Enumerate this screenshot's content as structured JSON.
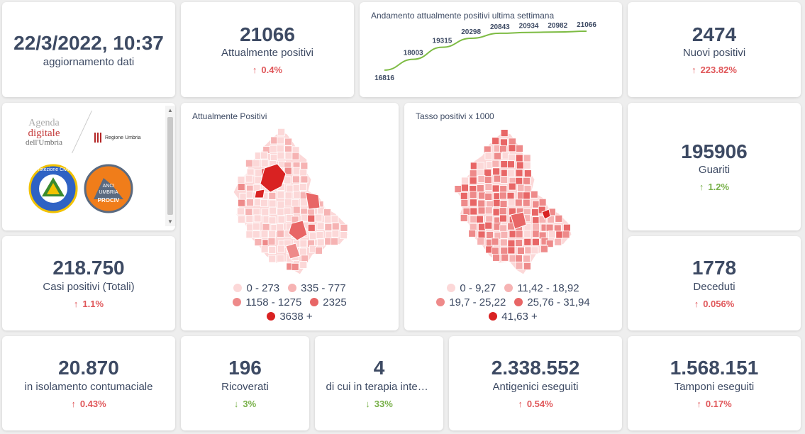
{
  "update": {
    "datetime": "22/3/2022, 10:37",
    "label": "aggiornamento dati"
  },
  "attualmente_positivi": {
    "value": "21066",
    "label": "Attualmente positivi",
    "trend": "0.4%",
    "arrow": "↑"
  },
  "weekly_chart": {
    "title": "Andamento attualmente positivi ultima settimana"
  },
  "nuovi_positivi": {
    "value": "2474",
    "label": "Nuovi positivi",
    "trend": "223.82%",
    "arrow": "↑"
  },
  "logos": {
    "agenda_line1": "Agenda",
    "agenda_line2": "digitale",
    "agenda_line3": "dell'Umbria",
    "regione": "Regione Umbria",
    "protezione": "Protezione Civile",
    "anci_1": "ANCI",
    "anci_2": "UMBRIA",
    "anci_3": "PROCIV"
  },
  "map1": {
    "title": "Attualmente Positivi",
    "legend": [
      {
        "label": "0 - 273",
        "color": "#fcd8d8"
      },
      {
        "label": "335 - 777",
        "color": "#f6b3b3"
      },
      {
        "label": "1158 - 1275",
        "color": "#ee8a8a"
      },
      {
        "label": "2325",
        "color": "#e86666"
      },
      {
        "label": "3638 +",
        "color": "#d92222"
      }
    ]
  },
  "map2": {
    "title": "Tasso positivi x 1000",
    "legend": [
      {
        "label": "0 - 9,27",
        "color": "#fcd8d8"
      },
      {
        "label": "11,42 - 18,92",
        "color": "#f6b3b3"
      },
      {
        "label": "19,7 - 25,22",
        "color": "#ee8a8a"
      },
      {
        "label": "25,76 - 31,94",
        "color": "#e86666"
      },
      {
        "label": "41,63 +",
        "color": "#d92222"
      }
    ]
  },
  "guariti": {
    "value": "195906",
    "label": "Guariti",
    "trend": "1.2%",
    "arrow": "↑"
  },
  "casi_totali": {
    "value": "218.750",
    "label": "Casi positivi (Totali)",
    "trend": "1.1%",
    "arrow": "↑"
  },
  "deceduti": {
    "value": "1778",
    "label": "Deceduti",
    "trend": "0.056%",
    "arrow": "↑"
  },
  "isolamento": {
    "value": "20.870",
    "label": "in isolamento contumaciale",
    "trend": "0.43%",
    "arrow": "↑"
  },
  "ricoverati": {
    "value": "196",
    "label": "Ricoverati",
    "trend": "3%",
    "arrow": "↓"
  },
  "terapia": {
    "value": "4",
    "label": "di cui in terapia intensiva",
    "trend": "33%",
    "arrow": "↓"
  },
  "antigenici": {
    "value": "2.338.552",
    "label": "Antigenici eseguiti",
    "trend": "0.54%",
    "arrow": "↑"
  },
  "tamponi": {
    "value": "1.568.151",
    "label": "Tamponi eseguiti",
    "trend": "0.17%",
    "arrow": "↑"
  },
  "colors": {
    "up": "#e0575a",
    "down": "#79b14a",
    "line": "#7dbb43",
    "text": "#3d4a63"
  },
  "chart_data": {
    "type": "line",
    "title": "Andamento attualmente positivi ultima settimana",
    "values": [
      16816,
      18003,
      19315,
      20298,
      20843,
      20934,
      20982,
      21066
    ],
    "ylim": [
      16500,
      21300
    ]
  }
}
